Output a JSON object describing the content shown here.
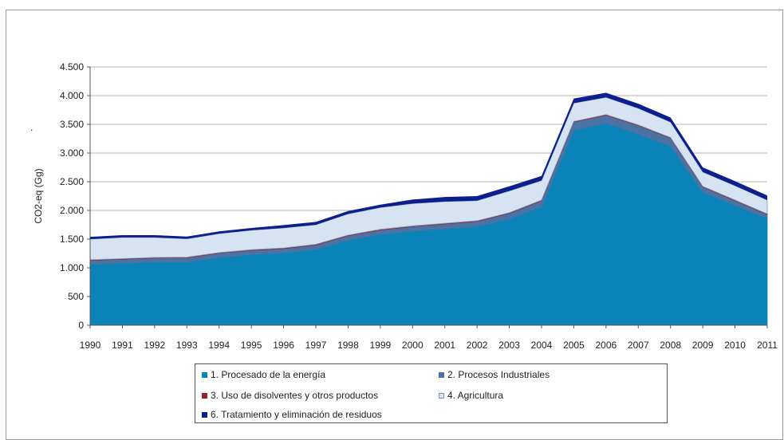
{
  "chart_data": {
    "type": "area",
    "stacked": true,
    "title": "",
    "xlabel": "",
    "ylabel": "CO2-eq (Gg)",
    "ylim": [
      0,
      4500
    ],
    "yticks": [
      0,
      500,
      1000,
      1500,
      2000,
      2500,
      3000,
      3500,
      4000,
      4500
    ],
    "ytick_labels": [
      "0",
      "500",
      "1.000",
      "1.500",
      "2.000",
      "2.500",
      "3.000",
      "3.500",
      "4.000",
      "4.500"
    ],
    "grid": "horizontal",
    "legend_position": "bottom",
    "categories": [
      "1990",
      "1991",
      "1992",
      "1993",
      "1994",
      "1995",
      "1996",
      "1997",
      "1998",
      "1999",
      "2000",
      "2001",
      "2002",
      "2003",
      "2004",
      "2005",
      "2006",
      "2007",
      "2008",
      "2009",
      "2010",
      "2011"
    ],
    "series": [
      {
        "name": "1. Procesado de la energía",
        "color": "#0a83b8",
        "values": [
          1060,
          1080,
          1100,
          1100,
          1180,
          1230,
          1260,
          1320,
          1480,
          1580,
          1640,
          1680,
          1720,
          1850,
          2060,
          3400,
          3520,
          3330,
          3120,
          2320,
          2090,
          1860
        ]
      },
      {
        "name": "2. Procesos Industriales",
        "color": "#4a72a3",
        "values": [
          70,
          70,
          70,
          75,
          75,
          75,
          75,
          80,
          80,
          80,
          80,
          85,
          90,
          100,
          110,
          140,
          140,
          150,
          140,
          90,
          80,
          70
        ]
      },
      {
        "name": "3. Uso de disolventes y otros productos",
        "color": "#9e1f27",
        "values": [
          10,
          10,
          10,
          10,
          10,
          10,
          10,
          10,
          10,
          10,
          10,
          10,
          10,
          10,
          10,
          10,
          10,
          10,
          10,
          10,
          10,
          10
        ]
      },
      {
        "name": "4. Agricultura",
        "color": "#d6e3f3",
        "values": [
          360,
          370,
          350,
          320,
          330,
          340,
          350,
          340,
          370,
          380,
          390,
          380,
          350,
          380,
          340,
          320,
          300,
          290,
          270,
          250,
          250,
          240
        ]
      },
      {
        "name": "6. Tratamiento y eliminación de residuos",
        "color": "#0d1f8c",
        "values": [
          40,
          40,
          40,
          40,
          40,
          40,
          50,
          50,
          50,
          50,
          70,
          80,
          80,
          80,
          80,
          80,
          80,
          80,
          80,
          80,
          80,
          80
        ]
      }
    ]
  },
  "side_mark": "."
}
